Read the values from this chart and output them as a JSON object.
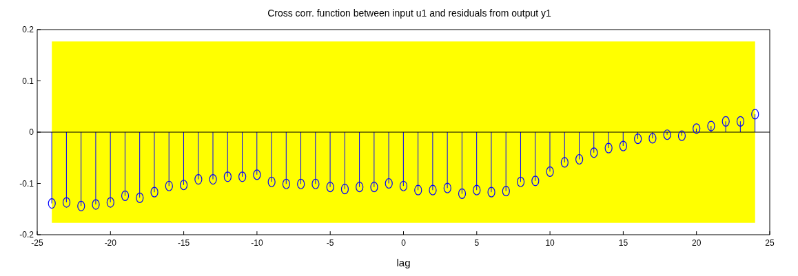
{
  "chart_data": {
    "type": "lollipop",
    "title": "Cross corr. function between input u1 and residuals from output y1",
    "xlabel": "lag",
    "x": [
      -24,
      -23,
      -22,
      -21,
      -20,
      -19,
      -18,
      -17,
      -16,
      -15,
      -14,
      -13,
      -12,
      -11,
      -10,
      -9,
      -8,
      -7,
      -6,
      -5,
      -4,
      -3,
      -2,
      -1,
      0,
      1,
      2,
      3,
      4,
      5,
      6,
      7,
      8,
      9,
      10,
      11,
      12,
      13,
      14,
      15,
      16,
      17,
      18,
      19,
      20,
      21,
      22,
      23,
      24
    ],
    "values": [
      -0.139,
      -0.137,
      -0.144,
      -0.141,
      -0.137,
      -0.124,
      -0.128,
      -0.117,
      -0.105,
      -0.103,
      -0.092,
      -0.092,
      -0.087,
      -0.087,
      -0.083,
      -0.097,
      -0.101,
      -0.101,
      -0.101,
      -0.107,
      -0.111,
      -0.107,
      -0.107,
      -0.1,
      -0.105,
      -0.113,
      -0.113,
      -0.109,
      -0.12,
      -0.113,
      -0.117,
      -0.115,
      -0.097,
      -0.095,
      -0.077,
      -0.059,
      -0.053,
      -0.04,
      -0.031,
      -0.027,
      -0.013,
      -0.012,
      -0.005,
      -0.007,
      0.007,
      0.012,
      0.021,
      0.021,
      0.035
    ],
    "color": "#0000ff",
    "marker": "circle",
    "bands": [
      {
        "axis": "y",
        "from": -0.177,
        "to": 0.177,
        "color": "#ffff00"
      }
    ],
    "ref_lines": [
      {
        "axis": "y",
        "value": 0,
        "color": "#000000"
      }
    ],
    "xlim": [
      -25,
      25
    ],
    "xticks": [
      -25,
      -20,
      -15,
      -10,
      -5,
      0,
      5,
      10,
      15,
      20,
      25
    ],
    "ylim": [
      -0.2,
      0.2
    ],
    "yticks": [
      -0.2,
      -0.1,
      0,
      0.1,
      0.2
    ]
  }
}
